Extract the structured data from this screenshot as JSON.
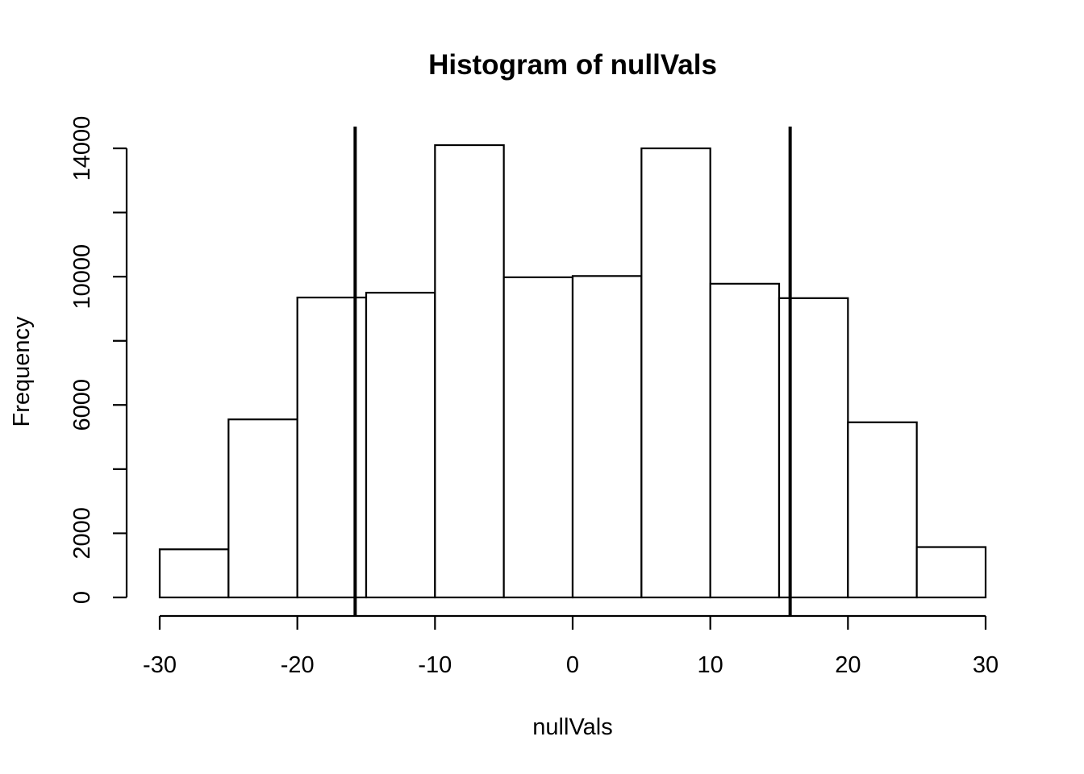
{
  "chart_data": {
    "type": "bar",
    "title": "Histogram of nullVals",
    "xlabel": "nullVals",
    "ylabel": "Frequency",
    "bins": [
      {
        "x0": -30,
        "x1": -25,
        "count": 1500
      },
      {
        "x0": -25,
        "x1": -20,
        "count": 5550
      },
      {
        "x0": -20,
        "x1": -15,
        "count": 9350
      },
      {
        "x0": -15,
        "x1": -10,
        "count": 9500
      },
      {
        "x0": -10,
        "x1": -5,
        "count": 14100
      },
      {
        "x0": -5,
        "x1": 0,
        "count": 9980
      },
      {
        "x0": 0,
        "x1": 5,
        "count": 10020
      },
      {
        "x0": 5,
        "x1": 10,
        "count": 14000
      },
      {
        "x0": 10,
        "x1": 15,
        "count": 9780
      },
      {
        "x0": 15,
        "x1": 20,
        "count": 9330
      },
      {
        "x0": 20,
        "x1": 25,
        "count": 5460
      },
      {
        "x0": 25,
        "x1": 30,
        "count": 1570
      }
    ],
    "vlines": [
      -15.8,
      15.8
    ],
    "xlim": [
      -30,
      30
    ],
    "ylim": [
      0,
      14000
    ],
    "xticks": [
      -30,
      -20,
      -10,
      0,
      10,
      20,
      30
    ],
    "xtick_labels": [
      "-30",
      "-20",
      "-10",
      "0",
      "10",
      "20",
      "30"
    ],
    "yticks": [
      0,
      2000,
      4000,
      6000,
      8000,
      10000,
      12000,
      14000
    ],
    "ytick_labels": [
      "0",
      "2000",
      "",
      "6000",
      "",
      "10000",
      "",
      "14000"
    ],
    "grid": false,
    "bar_fill": "#ffffff",
    "bar_stroke": "#000000"
  }
}
